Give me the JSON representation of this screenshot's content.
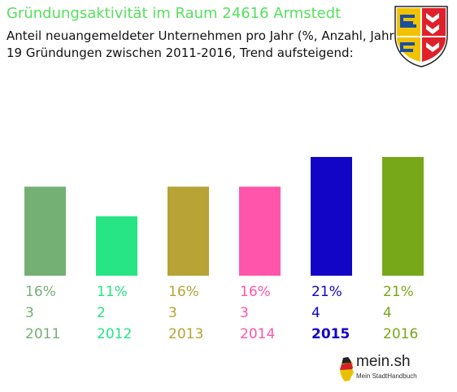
{
  "title": "Gründungsaktivität im Raum 24616 Armstedt",
  "subtitle_line1": "Anteil neuangemeldeter Unternehmen pro Jahr (%, Anzahl, Jahr)",
  "subtitle_line2": "19 Gründungen zwischen 2011-2016, Trend aufsteigend:",
  "crest_icon": "schleswig-holstein-coat-of-arms",
  "logo": {
    "name": "mein.sh",
    "tagline": "Mein StadtHandbuch",
    "icon": "germany-map-icon"
  },
  "chart_data": {
    "type": "bar",
    "categories": [
      "2011",
      "2012",
      "2013",
      "2014",
      "2015",
      "2016"
    ],
    "percent_labels": [
      "16%",
      "11%",
      "16%",
      "16%",
      "21%",
      "21%"
    ],
    "values": [
      3,
      2,
      3,
      3,
      4,
      4
    ],
    "colors": [
      "#74b074",
      "#27e484",
      "#b7a336",
      "#ff55aa",
      "#1205c5",
      "#76a819"
    ],
    "ylim": [
      0,
      4
    ],
    "grid": false,
    "legend": "none"
  }
}
